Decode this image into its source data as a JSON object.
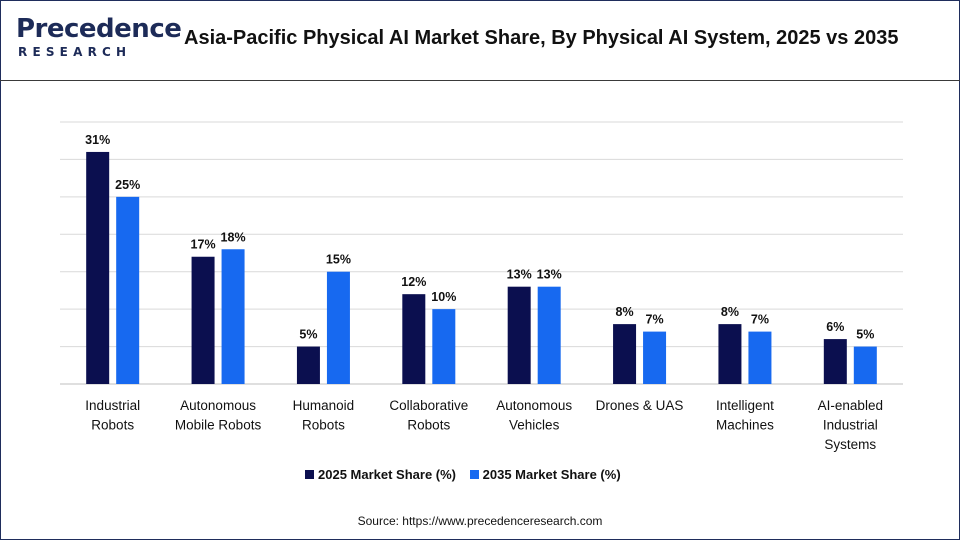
{
  "header": {
    "logo_word": "Precedence",
    "logo_sub": "RESEARCH",
    "title": "Asia-Pacific Physical AI Market Share, By Physical AI System, 2025 vs 2035"
  },
  "colors": {
    "series_2025": "#0b0f4f",
    "series_2035": "#1769f0",
    "gridline": "#d9d9d9"
  },
  "chart_data": {
    "type": "bar",
    "title": "Asia-Pacific Physical AI Market Share, By Physical AI System, 2025 vs 2035",
    "xlabel": "",
    "ylabel": "",
    "ylim": [
      0,
      35
    ],
    "grid": true,
    "legend_position": "bottom",
    "categories": [
      [
        "Industrial",
        "Robots"
      ],
      [
        "Autonomous",
        "Mobile Robots"
      ],
      [
        "Humanoid",
        "Robots"
      ],
      [
        "Collaborative",
        "Robots"
      ],
      [
        "Autonomous",
        "Vehicles"
      ],
      [
        "Drones & UAS"
      ],
      [
        "Intelligent",
        "Machines"
      ],
      [
        "AI-enabled",
        "Industrial",
        "Systems"
      ]
    ],
    "series": [
      {
        "name": "2025 Market Share (%)",
        "values": [
          31,
          17,
          5,
          12,
          13,
          8,
          8,
          6
        ],
        "labels": [
          "31%",
          "17%",
          "5%",
          "12%",
          "13%",
          "8%",
          "8%",
          "6%"
        ]
      },
      {
        "name": "2035 Market Share (%)",
        "values": [
          25,
          18,
          15,
          10,
          13,
          7,
          7,
          5
        ],
        "labels": [
          "25%",
          "18%",
          "15%",
          "10%",
          "13%",
          "7%",
          "7%",
          "5%"
        ]
      }
    ]
  },
  "footer": {
    "source": "Source: https://www.precedenceresearch.com"
  }
}
